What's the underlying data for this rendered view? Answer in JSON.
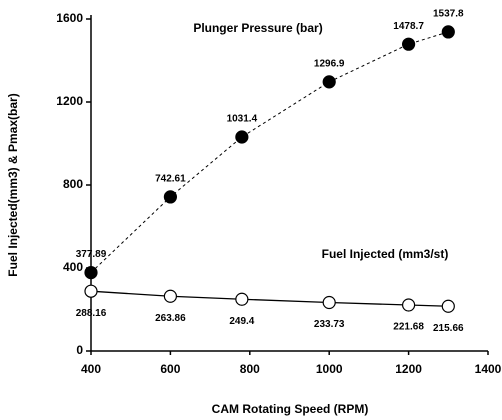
{
  "chart_data": {
    "type": "line",
    "xlabel": "CAM Rotating Speed (RPM)",
    "ylabel": "Fuel Injected(mm3) & Pmax(bar)",
    "x": [
      400,
      600,
      780,
      1000,
      1200,
      1300
    ],
    "series": [
      {
        "name": "Plunger Pressure (bar)",
        "color": "#000000",
        "marker": "filled",
        "linestyle": "dashed",
        "values": [
          377.89,
          742.61,
          1031.4,
          1296.9,
          1478.7,
          1537.8
        ]
      },
      {
        "name": "Fuel Injected (mm3/st)",
        "color": "#000000",
        "marker": "hollow",
        "linestyle": "solid",
        "values": [
          288.16,
          263.86,
          249.4,
          233.73,
          221.68,
          215.66
        ]
      }
    ],
    "xlim": [
      400,
      1400
    ],
    "xticks": [
      400,
      600,
      800,
      1000,
      1200,
      1400
    ],
    "ylim": [
      0,
      1600
    ],
    "yticks": [
      0,
      400,
      800,
      1200,
      1600
    ]
  }
}
